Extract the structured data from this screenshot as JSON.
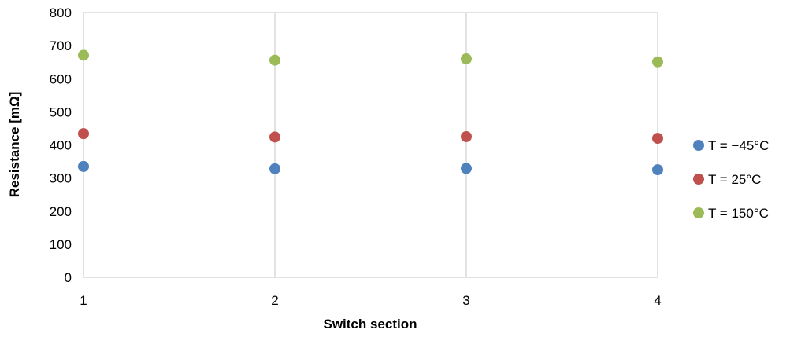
{
  "chart_data": {
    "type": "scatter",
    "xlabel": "Switch section",
    "ylabel": "Resistance [mΩ]",
    "x": [
      1,
      2,
      3,
      4
    ],
    "xticks": [
      "1",
      "2",
      "3",
      "4"
    ],
    "xlim": [
      1,
      4
    ],
    "ylim": [
      0,
      800
    ],
    "yticks": [
      "0",
      "100",
      "200",
      "300",
      "400",
      "500",
      "600",
      "700",
      "800"
    ],
    "grid": "vertical",
    "legend_position": "right",
    "series": [
      {
        "name": "T = −45°C",
        "color": "#4f81bd",
        "values": [
          335,
          328,
          329,
          325
        ]
      },
      {
        "name": "T = 25°C",
        "color": "#c0504d",
        "values": [
          434,
          424,
          425,
          420
        ]
      },
      {
        "name": "T = 150°C",
        "color": "#9bbb59",
        "values": [
          671,
          656,
          660,
          651
        ]
      }
    ]
  }
}
